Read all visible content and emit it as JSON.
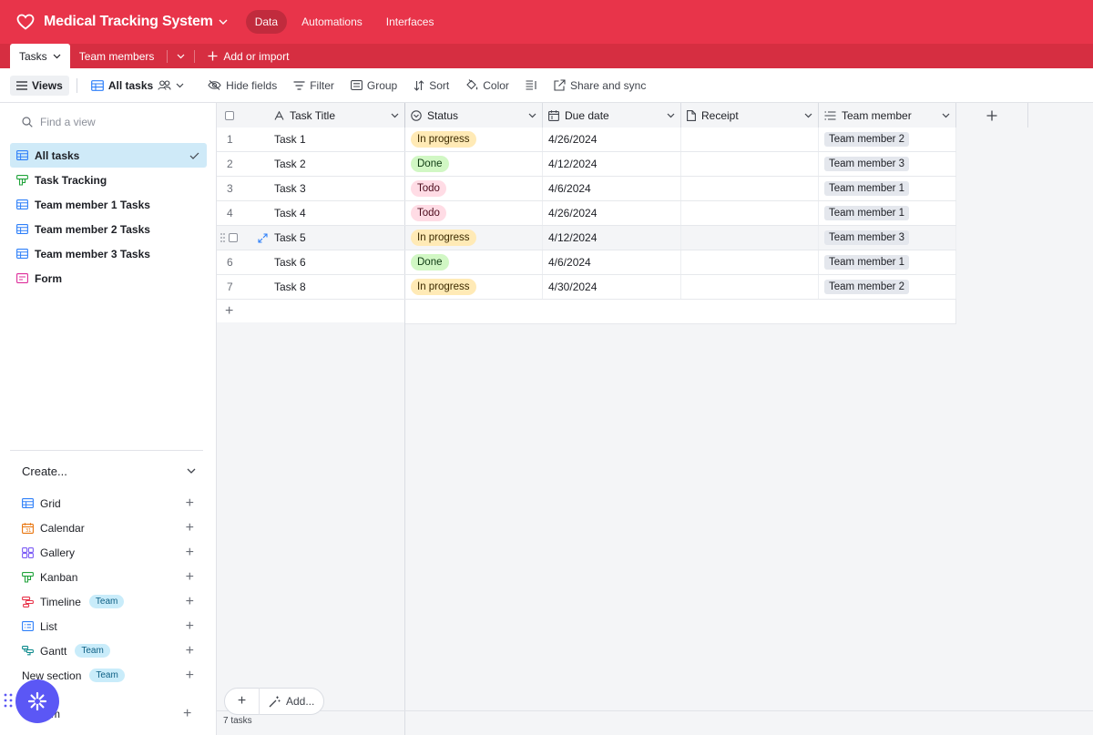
{
  "app": {
    "base_name": "Medical Tracking System",
    "nav": [
      {
        "label": "Data",
        "active": true
      },
      {
        "label": "Automations",
        "active": false
      },
      {
        "label": "Interfaces",
        "active": false
      }
    ],
    "brand_color": "#e8344a"
  },
  "tables": {
    "tabs": [
      {
        "label": "Tasks",
        "active": true
      },
      {
        "label": "Team members",
        "active": false
      }
    ],
    "add_import_label": "Add or import"
  },
  "toolbar": {
    "views_label": "Views",
    "current_view": "All tasks",
    "hide_fields": "Hide fields",
    "filter": "Filter",
    "group": "Group",
    "sort": "Sort",
    "color": "Color",
    "share_sync": "Share and sync"
  },
  "sidebar": {
    "find_placeholder": "Find a view",
    "views": [
      {
        "label": "All tasks",
        "icon": "grid-icon",
        "selected": true
      },
      {
        "label": "Task Tracking",
        "icon": "kanban-icon",
        "selected": false
      },
      {
        "label": "Team member 1 Tasks",
        "icon": "grid-icon",
        "selected": false
      },
      {
        "label": "Team member 2 Tasks",
        "icon": "grid-icon",
        "selected": false
      },
      {
        "label": "Team member 3 Tasks",
        "icon": "grid-icon",
        "selected": false
      },
      {
        "label": "Form",
        "icon": "form-icon",
        "selected": false
      }
    ],
    "create_label": "Create...",
    "create_items": [
      {
        "label": "Grid",
        "icon": "grid-icon",
        "badge": ""
      },
      {
        "label": "Calendar",
        "icon": "calendar-icon",
        "badge": ""
      },
      {
        "label": "Gallery",
        "icon": "gallery-icon",
        "badge": ""
      },
      {
        "label": "Kanban",
        "icon": "kanban-icon",
        "badge": ""
      },
      {
        "label": "Timeline",
        "icon": "timeline-icon",
        "badge": "Team"
      },
      {
        "label": "List",
        "icon": "list-icon",
        "badge": ""
      },
      {
        "label": "Gantt",
        "icon": "gantt-icon",
        "badge": "Team"
      },
      {
        "label": "New section",
        "icon": "",
        "badge": "Team"
      }
    ],
    "form_bottom_label": "rm"
  },
  "grid": {
    "columns": [
      "Task Title",
      "Status",
      "Due date",
      "Receipt",
      "Team member"
    ],
    "rows": [
      {
        "num": "1",
        "title": "Task 1",
        "status": "In progress",
        "due": "4/26/2024",
        "receipt": "",
        "member": "Team member 2"
      },
      {
        "num": "2",
        "title": "Task 2",
        "status": "Done",
        "due": "4/12/2024",
        "receipt": "",
        "member": "Team member 3"
      },
      {
        "num": "3",
        "title": "Task 3",
        "status": "Todo",
        "due": "4/6/2024",
        "receipt": "",
        "member": "Team member 1"
      },
      {
        "num": "4",
        "title": "Task 4",
        "status": "Todo",
        "due": "4/26/2024",
        "receipt": "",
        "member": "Team member 1"
      },
      {
        "num": "",
        "title": "Task 5",
        "status": "In progress",
        "due": "4/12/2024",
        "receipt": "",
        "member": "Team member 3"
      },
      {
        "num": "6",
        "title": "Task 6",
        "status": "Done",
        "due": "4/6/2024",
        "receipt": "",
        "member": "Team member 1"
      },
      {
        "num": "7",
        "title": "Task 8",
        "status": "In progress",
        "due": "4/30/2024",
        "receipt": "",
        "member": "Team member 2"
      }
    ],
    "status_colors": {
      "In progress": {
        "bg": "#ffeab6",
        "fg": "#3b2a00"
      },
      "Done": {
        "bg": "#d1f7c4",
        "fg": "#0e3a12"
      },
      "Todo": {
        "bg": "#ffdce5",
        "fg": "#4c0b1c"
      }
    },
    "add_label": "Add...",
    "record_count": "7 tasks"
  }
}
